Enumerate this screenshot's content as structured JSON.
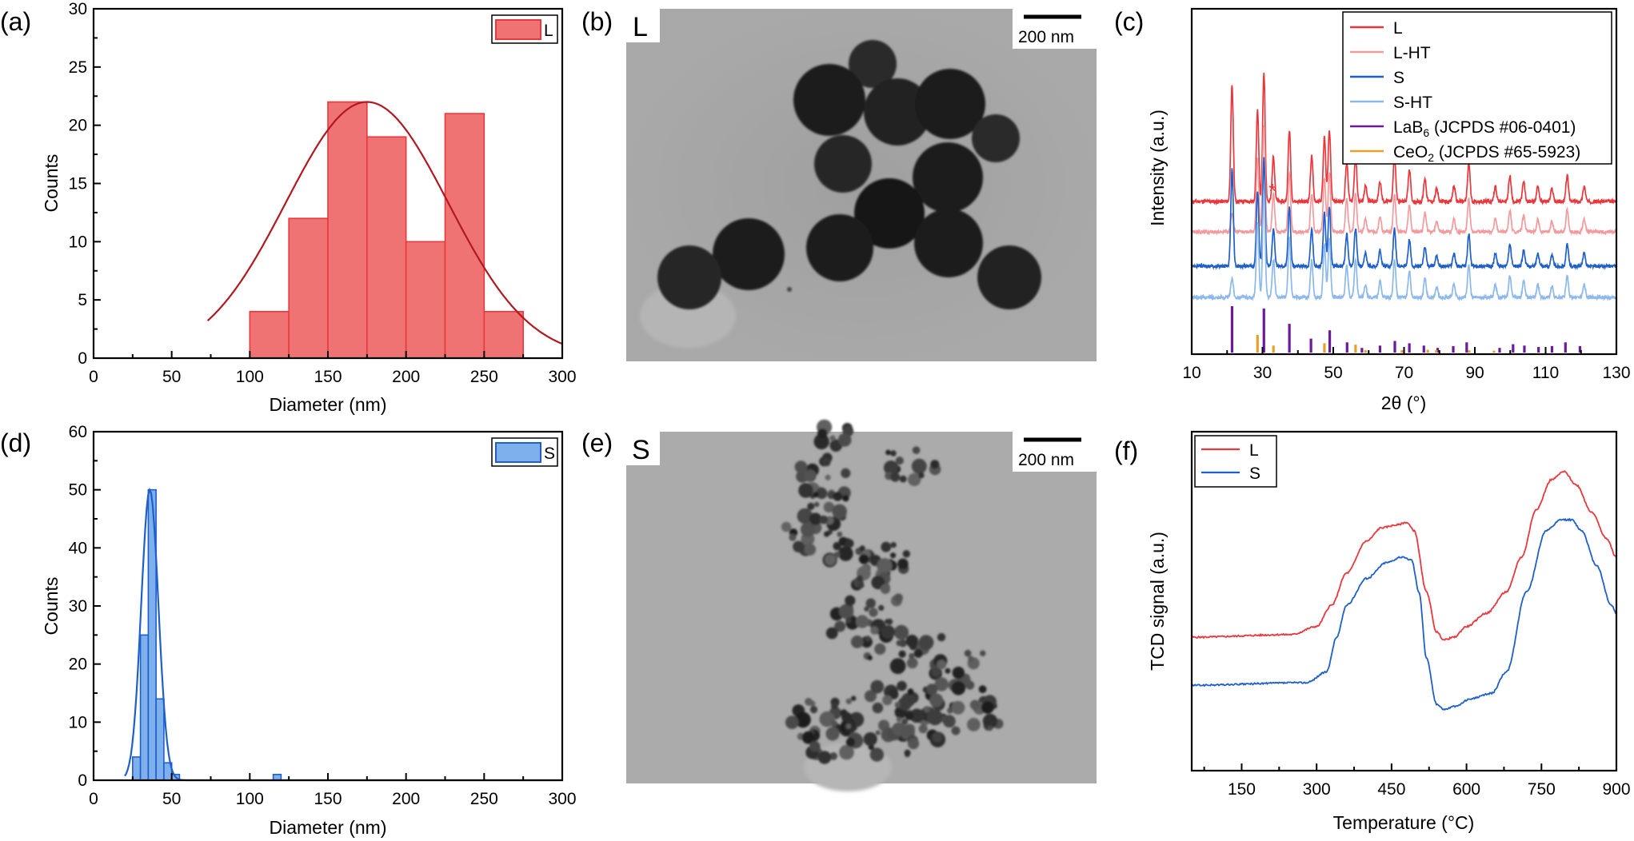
{
  "panels": {
    "a": "(a)",
    "b": "(b)",
    "c": "(c)",
    "d": "(d)",
    "e": "(e)",
    "f": "(f)"
  },
  "images": {
    "b": {
      "corner_label": "L",
      "scale_label": "200 nm"
    },
    "e": {
      "corner_label": "S",
      "scale_label": "200 nm"
    }
  },
  "colors": {
    "L": "#e8383d",
    "L_fill": "#f07373",
    "L_HT": "#f29b9e",
    "S": "#1f5fc9",
    "S_fill": "#7fb0ee",
    "S_HT": "#8cb8ec",
    "LaB6": "#6a1b9a",
    "CeO2": "#e3a22b"
  },
  "chart_data": [
    {
      "id": "a",
      "type": "bar",
      "xlabel": "Diameter (nm)",
      "ylabel": "Counts",
      "xlim": [
        0,
        300
      ],
      "ylim": [
        0,
        30
      ],
      "xticks": [
        0,
        50,
        100,
        150,
        200,
        250,
        300
      ],
      "yticks": [
        0,
        5,
        10,
        15,
        20,
        25,
        30
      ],
      "legend": [
        "L"
      ],
      "bins": [
        [
          100,
          125
        ],
        [
          125,
          150
        ],
        [
          150,
          175
        ],
        [
          175,
          200
        ],
        [
          200,
          225
        ],
        [
          225,
          250
        ],
        [
          250,
          275
        ]
      ],
      "values": [
        4,
        12,
        22,
        19,
        10,
        21,
        4
      ],
      "fit": {
        "type": "gaussian",
        "peak_x": 175,
        "peak_y": 22,
        "sigma": 52,
        "x_start": 73
      }
    },
    {
      "id": "d",
      "type": "bar",
      "xlabel": "Diameter (nm)",
      "ylabel": "Counts",
      "xlim": [
        0,
        300
      ],
      "ylim": [
        0,
        60
      ],
      "xticks": [
        0,
        50,
        100,
        150,
        200,
        250,
        300
      ],
      "yticks": [
        0,
        10,
        20,
        30,
        40,
        50,
        60
      ],
      "legend": [
        "S"
      ],
      "bins": [
        [
          25,
          30
        ],
        [
          30,
          35
        ],
        [
          35,
          40
        ],
        [
          40,
          45
        ],
        [
          45,
          50
        ],
        [
          50,
          55
        ],
        [
          115,
          120
        ]
      ],
      "values": [
        4,
        25,
        50,
        14,
        3,
        1,
        1
      ],
      "fit": {
        "type": "gaussian",
        "peak_x": 36,
        "peak_y": 50,
        "sigma": 5.5,
        "x_start": 20
      }
    },
    {
      "id": "c",
      "type": "line",
      "xlabel": "2θ (°)",
      "ylabel": "Intensity (a.u.)",
      "xlim": [
        10,
        130
      ],
      "xticks": [
        10,
        30,
        50,
        70,
        90,
        110,
        130
      ],
      "legend_position": "top-right",
      "annotation": "*",
      "annotation_x": 39.5,
      "series": [
        {
          "name": "L",
          "offset": 4,
          "color_key": "L"
        },
        {
          "name": "L-HT",
          "offset": 3,
          "color_key": "L_HT"
        },
        {
          "name": "S",
          "offset": 2,
          "color_key": "S"
        },
        {
          "name": "S-HT",
          "offset": 1,
          "color_key": "S_HT"
        }
      ],
      "peaks_2theta": [
        21.4,
        28.6,
        30.4,
        33.1,
        37.6,
        43.9,
        47.5,
        48.9,
        53.8,
        56.3,
        59.1,
        63.2,
        67.3,
        71.5,
        75.9,
        79.2,
        84.1,
        88.3,
        95.8,
        99.9,
        103.8,
        107.8,
        111.8,
        116.1,
        120.9
      ],
      "peak_heights": [
        0.9,
        0.7,
        1.0,
        0.35,
        0.55,
        0.35,
        0.5,
        0.55,
        0.3,
        0.35,
        0.12,
        0.15,
        0.35,
        0.25,
        0.18,
        0.1,
        0.12,
        0.3,
        0.12,
        0.2,
        0.15,
        0.12,
        0.1,
        0.2,
        0.12
      ],
      "references": [
        {
          "name_main": "LaB",
          "name_sub": "6",
          "name_rest": " (JCPDS #06-0401)",
          "color_key": "LaB6",
          "x": [
            21.4,
            30.4,
            37.6,
            43.7,
            49.0,
            53.9,
            58.1,
            63.2,
            67.4,
            71.5,
            75.6,
            79.5,
            83.9,
            87.7,
            97.0,
            100.8,
            104.0,
            108.0,
            111.8,
            115.6,
            119.7
          ],
          "h": [
            1.0,
            0.95,
            0.62,
            0.3,
            0.48,
            0.22,
            0.1,
            0.15,
            0.25,
            0.2,
            0.15,
            0.1,
            0.14,
            0.22,
            0.1,
            0.18,
            0.15,
            0.12,
            0.14,
            0.22,
            0.14
          ]
        },
        {
          "name_main": "CeO",
          "name_sub": "2",
          "name_rest": " (JCPDS #65-5923)",
          "color_key": "CeO2",
          "x": [
            28.6,
            33.1,
            47.5,
            56.3,
            59.1,
            69.4,
            76.7,
            79.1,
            88.4,
            95.4
          ],
          "h": [
            0.38,
            0.15,
            0.2,
            0.17,
            0.05,
            0.05,
            0.06,
            0.05,
            0.05,
            0.04
          ]
        }
      ]
    },
    {
      "id": "f",
      "type": "line",
      "xlabel": "Temperature (°C)",
      "ylabel": "TCD signal (a.u.)",
      "xlim": [
        50,
        900
      ],
      "xticks": [
        150,
        300,
        450,
        600,
        750,
        900
      ],
      "legend_position": "top-left",
      "series": [
        {
          "name": "L",
          "color_key": "L",
          "x": [
            50,
            250,
            300,
            330,
            360,
            400,
            430,
            460,
            480,
            495,
            520,
            540,
            555,
            575,
            600,
            640,
            680,
            710,
            740,
            770,
            795,
            820,
            850,
            880,
            900
          ],
          "y": [
            0.38,
            0.39,
            0.42,
            0.5,
            0.62,
            0.74,
            0.79,
            0.8,
            0.81,
            0.78,
            0.55,
            0.4,
            0.37,
            0.38,
            0.42,
            0.47,
            0.55,
            0.68,
            0.86,
            0.97,
            1.0,
            0.95,
            0.85,
            0.75,
            0.68
          ]
        },
        {
          "name": "S",
          "color_key": "S",
          "x": [
            50,
            280,
            320,
            340,
            360,
            400,
            440,
            470,
            490,
            505,
            520,
            540,
            555,
            575,
            610,
            650,
            680,
            720,
            760,
            790,
            810,
            830,
            860,
            890,
            900
          ],
          "y": [
            0.2,
            0.21,
            0.25,
            0.38,
            0.5,
            0.6,
            0.66,
            0.68,
            0.67,
            0.55,
            0.3,
            0.13,
            0.11,
            0.12,
            0.15,
            0.17,
            0.25,
            0.55,
            0.78,
            0.82,
            0.82,
            0.78,
            0.65,
            0.5,
            0.47
          ]
        }
      ]
    }
  ]
}
